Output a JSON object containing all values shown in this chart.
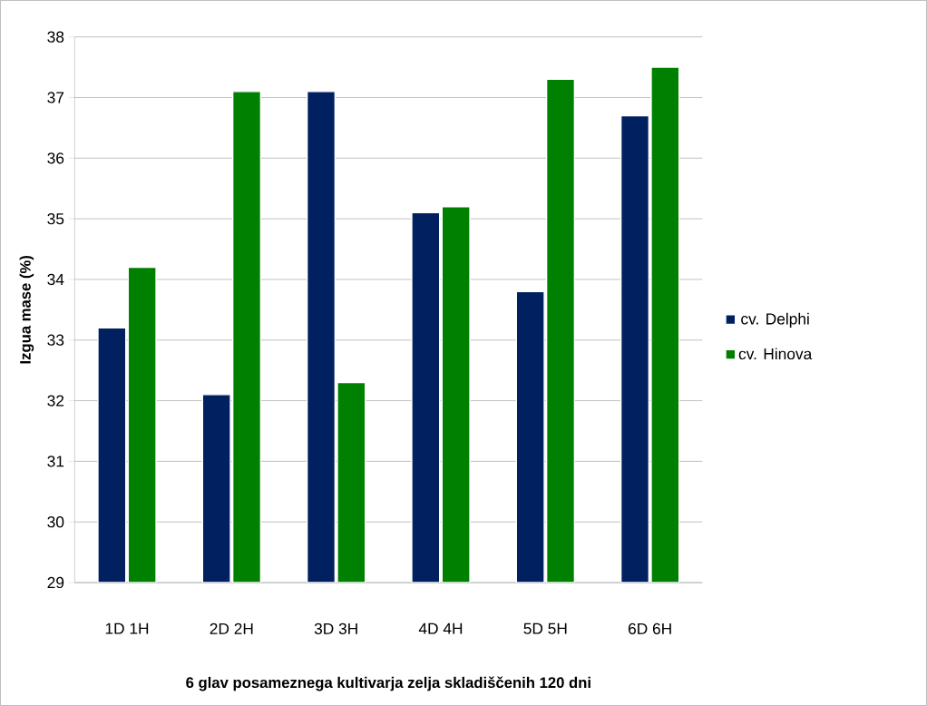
{
  "chart_data": {
    "type": "bar",
    "xlabel": "6 glav posameznega kultivarja zelja skladiščenih 120 dni",
    "ylabel": "Izgua mase (%)",
    "categories": [
      "1D 1H",
      "2D 2H",
      "3D 3H",
      "4D 4H",
      "5D 5H",
      "6D 6H"
    ],
    "series": [
      {
        "name": "cv. Delphi",
        "color": "#002060",
        "values": [
          33.2,
          32.1,
          37.1,
          35.1,
          33.8,
          36.7
        ]
      },
      {
        "name": "cv. Hinova",
        "color": "#008000",
        "values": [
          34.2,
          37.1,
          32.3,
          35.2,
          37.3,
          37.5
        ]
      }
    ],
    "ylim": [
      29,
      38
    ],
    "yticks": [
      29,
      30,
      31,
      32,
      33,
      34,
      35,
      36,
      37,
      38
    ],
    "grid": "y",
    "legend": "right"
  }
}
